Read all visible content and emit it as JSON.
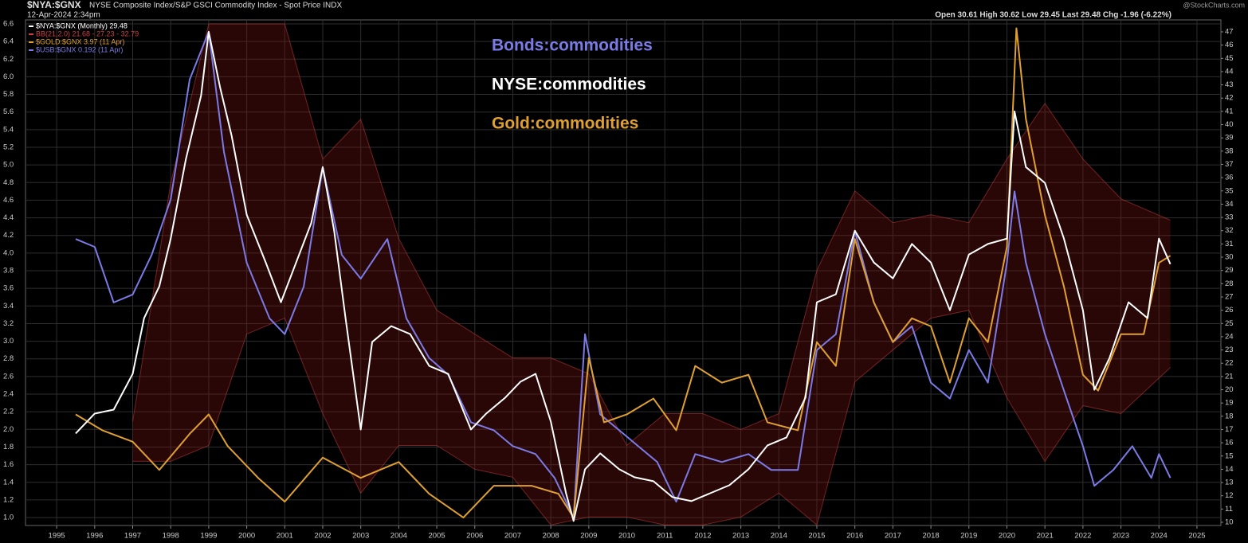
{
  "chart_data": {
    "type": "line",
    "title": "$NYA:$GNX",
    "subtitle": "NYSE Composite Index/S&P GSCI Commodity Index - Spot Price INDX",
    "date": "12-Apr-2024 2:34pm",
    "quote": "Open 30.61 High 30.62 Low 29.45 Last 29.48 Chg -1.96 (-6.22%)",
    "source": "@StockCharts.com",
    "legend": "top-left",
    "grid": true,
    "xlim": [
      1994.18,
      2025.63
    ],
    "xticks": [
      1995,
      1996,
      1997,
      1998,
      1999,
      2000,
      2001,
      2002,
      2003,
      2004,
      2005,
      2006,
      2007,
      2008,
      2009,
      2010,
      2011,
      2012,
      2013,
      2014,
      2015,
      2016,
      2017,
      2018,
      2019,
      2020,
      2021,
      2022,
      2023,
      2024,
      2025
    ],
    "ylim": [
      0.91,
      6.645
    ],
    "yticks": [
      {
        "value": 1,
        "label": "1.0"
      },
      1.2,
      1.4,
      1.6,
      1.8,
      {
        "value": 2,
        "label": "2.0"
      },
      2.2,
      2.4,
      2.6,
      2.8,
      {
        "value": 3,
        "label": "3.0"
      },
      3.2,
      3.4,
      3.6,
      3.8,
      {
        "value": 4,
        "label": "4.0"
      },
      4.2,
      4.4,
      4.6,
      4.8,
      {
        "value": 5,
        "label": "5.0"
      },
      5.2,
      5.4,
      5.6,
      5.8,
      {
        "value": 6,
        "label": "6.0"
      },
      6.2,
      6.4,
      6.6
    ],
    "y2lim": [
      9.76,
      47.9
    ],
    "y2ticks": [
      10,
      11,
      12,
      13,
      14,
      15,
      16,
      17,
      18,
      19,
      20,
      21,
      22,
      23,
      24,
      25,
      26,
      27,
      28,
      29,
      30,
      31,
      32,
      33,
      34,
      35,
      36,
      37,
      38,
      39,
      40,
      41,
      42,
      43,
      44,
      45,
      46,
      47
    ],
    "bands": {
      "name": "BB(21,2.0) 21.68 - 27.23 - 32.79",
      "color": "#d04040",
      "axis": "y2",
      "x": [
        1997.0,
        1998.0,
        1999.0,
        2000.0,
        2001.0,
        2002.0,
        2003.0,
        2004.0,
        2005.0,
        2006.0,
        2007.0,
        2008.0,
        2009.0,
        2010.0,
        2011.0,
        2012.0,
        2013.0,
        2014.0,
        2015.0,
        2016.0,
        2017.0,
        2018.0,
        2019.0,
        2020.0,
        2021.0,
        2022.0,
        2023.0,
        2024.3
      ],
      "upper": [
        17.6,
        35.6,
        47.6,
        47.6,
        47.6,
        37.4,
        40.4,
        31.4,
        26,
        24.2,
        22.4,
        22.4,
        21.2,
        15.8,
        18.2,
        18.2,
        17,
        18.2,
        29,
        35,
        32.6,
        33.2,
        32.6,
        37.4,
        41.6,
        37.4,
        34.4,
        32.79
      ],
      "lower": [
        14.6,
        14.6,
        15.8,
        24.2,
        25.4,
        18.2,
        12.2,
        15.8,
        15.8,
        14,
        13.4,
        9.8,
        10.4,
        10.4,
        9.8,
        9.8,
        10.4,
        12.2,
        9.8,
        20.6,
        23,
        25.4,
        26,
        19.4,
        14.6,
        18.8,
        18.2,
        21.68
      ]
    },
    "series": [
      {
        "name": "$USB:$GNX 0.192 (11 Apr)",
        "color": "#7b7be8",
        "axis": "y",
        "x": [
          1995.5,
          1996.0,
          1996.5,
          1997.0,
          1997.5,
          1998.0,
          1998.5,
          1999.0,
          1999.4,
          2000.0,
          2000.6,
          2001.0,
          2001.5,
          2002.0,
          2002.5,
          2003.0,
          2003.7,
          2004.2,
          2004.8,
          2005.3,
          2005.9,
          2006.5,
          2007.0,
          2007.6,
          2008.1,
          2008.6,
          2008.9,
          2009.3,
          2009.8,
          2010.3,
          2010.8,
          2011.3,
          2011.8,
          2012.5,
          2013.2,
          2013.8,
          2014.5,
          2015.0,
          2015.5,
          2016.0,
          2016.5,
          2017.0,
          2017.5,
          2018.0,
          2018.5,
          2019.0,
          2019.5,
          2020.0,
          2020.2,
          2020.5,
          2021.0,
          2021.5,
          2022.0,
          2022.3,
          2022.8,
          2023.3,
          2023.8,
          2024.0,
          2024.3
        ],
        "values": [
          4.16,
          4.07,
          3.44,
          3.53,
          3.98,
          4.61,
          5.97,
          6.51,
          5.15,
          3.89,
          3.26,
          3.08,
          3.62,
          4.97,
          3.98,
          3.71,
          4.16,
          3.26,
          2.81,
          2.62,
          2.08,
          1.99,
          1.81,
          1.72,
          1.45,
          1.0,
          3.08,
          2.17,
          1.99,
          1.81,
          1.63,
          1.18,
          1.72,
          1.63,
          1.72,
          1.54,
          1.54,
          2.9,
          3.08,
          4.25,
          3.44,
          2.99,
          3.17,
          2.53,
          2.35,
          2.9,
          2.53,
          3.89,
          4.7,
          3.89,
          3.08,
          2.44,
          1.81,
          1.36,
          1.54,
          1.81,
          1.45,
          1.72,
          1.45
        ]
      },
      {
        "name": "$GOLD:$GNX 3.97 (11 Apr)",
        "color": "#e0a030",
        "axis": "y",
        "x": [
          1995.5,
          1996.2,
          1997.0,
          1997.7,
          1998.5,
          1999.0,
          1999.5,
          2000.3,
          2001.0,
          2002.0,
          2003.0,
          2004.0,
          2004.8,
          2005.7,
          2006.5,
          2007.5,
          2008.2,
          2008.6,
          2009.0,
          2009.4,
          2010.0,
          2010.7,
          2011.3,
          2011.8,
          2012.5,
          2013.2,
          2013.7,
          2014.5,
          2015.0,
          2015.5,
          2016.0,
          2016.5,
          2017.0,
          2017.5,
          2018.0,
          2018.5,
          2019.0,
          2019.5,
          2020.0,
          2020.25,
          2020.5,
          2021.0,
          2021.5,
          2022.0,
          2022.4,
          2023.0,
          2023.6,
          2024.0,
          2024.3
        ],
        "values": [
          2.17,
          1.99,
          1.86,
          1.54,
          1.95,
          2.17,
          1.81,
          1.45,
          1.18,
          1.68,
          1.45,
          1.63,
          1.27,
          1.0,
          1.36,
          1.36,
          1.27,
          1.0,
          2.81,
          2.08,
          2.17,
          2.35,
          1.99,
          2.72,
          2.53,
          2.62,
          2.08,
          1.99,
          2.99,
          2.72,
          4.16,
          3.44,
          2.99,
          3.26,
          3.17,
          2.53,
          3.26,
          2.99,
          4.07,
          6.55,
          5.52,
          4.43,
          3.62,
          2.62,
          2.44,
          3.08,
          3.08,
          3.89,
          3.97
        ]
      },
      {
        "name": "$NYA:$GNX (Monthly) 29.48",
        "color": "#ffffff",
        "axis": "y2",
        "x": [
          1995.5,
          1996.0,
          1996.5,
          1997.0,
          1997.3,
          1997.7,
          1998.0,
          1998.4,
          1998.8,
          1999.0,
          1999.3,
          1999.6,
          2000.0,
          2000.5,
          2000.9,
          2001.3,
          2001.7,
          2002.0,
          2002.3,
          2002.6,
          2003.0,
          2003.3,
          2003.8,
          2004.3,
          2004.8,
          2005.3,
          2005.9,
          2006.3,
          2006.8,
          2007.2,
          2007.6,
          2008.0,
          2008.4,
          2008.6,
          2008.9,
          2009.3,
          2009.8,
          2010.2,
          2010.7,
          2011.2,
          2011.7,
          2012.2,
          2012.7,
          2013.2,
          2013.7,
          2014.2,
          2014.7,
          2015.0,
          2015.5,
          2016.0,
          2016.5,
          2017.0,
          2017.5,
          2018.0,
          2018.5,
          2019.0,
          2019.5,
          2020.0,
          2020.2,
          2020.5,
          2021.0,
          2021.5,
          2022.0,
          2022.3,
          2022.7,
          2023.2,
          2023.7,
          2024.0,
          2024.3
        ],
        "values": [
          16.7,
          18.2,
          18.5,
          21.2,
          25.4,
          27.8,
          31.4,
          37.4,
          42.2,
          47,
          42.8,
          39.2,
          33.2,
          29.6,
          26.6,
          29.6,
          32.6,
          36.8,
          32,
          25.4,
          17,
          23.6,
          24.8,
          24.2,
          21.8,
          21.2,
          17,
          18.2,
          19.4,
          20.6,
          21.2,
          17.6,
          12.2,
          10.1,
          14,
          15.2,
          14,
          13.4,
          13.1,
          11.9,
          11.6,
          12.2,
          12.8,
          14,
          15.8,
          16.4,
          19.4,
          26.6,
          27.2,
          32,
          29.6,
          28.4,
          31,
          29.6,
          26,
          30.2,
          31,
          31.4,
          41,
          36.8,
          35.6,
          31.4,
          26,
          20,
          22.4,
          26.6,
          25.4,
          31.4,
          29.48
        ]
      }
    ],
    "annotations": [
      {
        "text": "Bonds:commodities",
        "color": "#7b7be8"
      },
      {
        "text": "NYSE:commodities",
        "color": "#ffffff"
      },
      {
        "text": "Gold:commodities",
        "color": "#e0a030"
      }
    ]
  }
}
